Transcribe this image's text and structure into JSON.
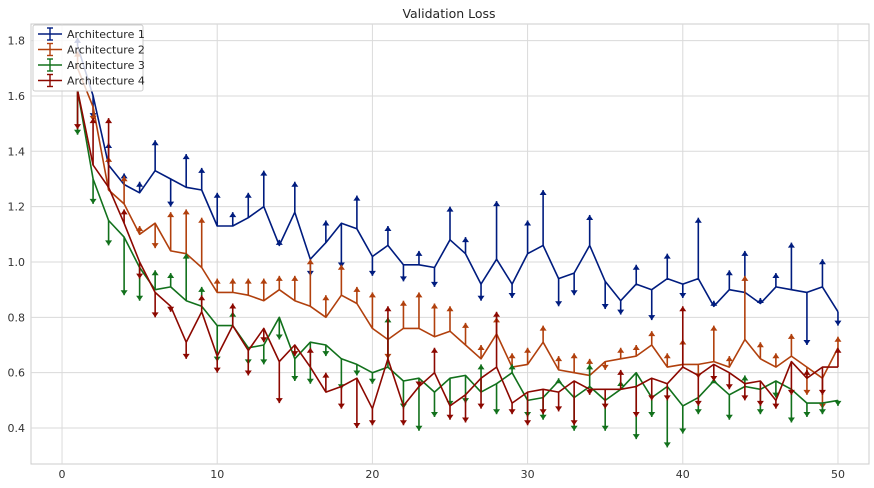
{
  "chart_data": {
    "type": "line",
    "title": "Validation Loss",
    "xlabel": "",
    "ylabel": "",
    "xlim": [
      -2,
      52
    ],
    "ylim": [
      0.27,
      1.86
    ],
    "x_ticks": [
      0,
      10,
      20,
      30,
      40,
      50
    ],
    "y_ticks": [
      0.4,
      0.6,
      0.8,
      1.0,
      1.2,
      1.4,
      1.6,
      1.8
    ],
    "grid": true,
    "legend_position": "top-left",
    "error_bars": "one-sided (one cap per point, direction varies)",
    "x": [
      1,
      2,
      3,
      4,
      5,
      6,
      7,
      8,
      9,
      10,
      11,
      12,
      13,
      14,
      15,
      16,
      17,
      18,
      19,
      20,
      21,
      22,
      23,
      24,
      25,
      26,
      27,
      28,
      29,
      30,
      31,
      32,
      33,
      34,
      35,
      36,
      37,
      38,
      39,
      40,
      41,
      42,
      43,
      44,
      45,
      46,
      47,
      48,
      49,
      50
    ],
    "series": [
      {
        "name": "Architecture 1",
        "color": "#001c7f",
        "values": [
          1.78,
          1.6,
          1.35,
          1.28,
          1.25,
          1.33,
          1.3,
          1.27,
          1.26,
          1.13,
          1.13,
          1.16,
          1.2,
          1.06,
          1.18,
          1.01,
          1.07,
          1.14,
          1.12,
          1.02,
          1.06,
          0.99,
          0.99,
          0.98,
          1.08,
          1.03,
          0.92,
          1.01,
          0.92,
          1.03,
          1.06,
          0.94,
          0.96,
          1.06,
          0.93,
          0.86,
          0.92,
          0.9,
          0.94,
          0.92,
          0.94,
          0.84,
          0.9,
          0.89,
          0.85,
          0.91,
          0.9,
          0.89,
          0.91,
          0.82
        ],
        "error_ends": [
          1.81,
          1.52,
          1.43,
          1.32,
          1.29,
          1.44,
          1.2,
          1.39,
          1.34,
          1.25,
          1.18,
          1.25,
          1.33,
          1.08,
          1.29,
          0.95,
          1.15,
          0.98,
          1.24,
          0.95,
          1.13,
          0.93,
          1.04,
          0.91,
          1.2,
          1.09,
          0.86,
          1.22,
          0.87,
          1.15,
          1.26,
          0.84,
          0.88,
          1.17,
          0.83,
          0.81,
          0.99,
          0.79,
          1.03,
          0.87,
          1.16,
          0.86,
          0.97,
          1.04,
          0.87,
          0.96,
          1.07,
          0.7,
          1.01,
          0.77
        ]
      },
      {
        "name": "Architecture 2",
        "color": "#b1400d",
        "values": [
          1.7,
          1.56,
          1.26,
          1.21,
          1.1,
          1.14,
          1.04,
          1.03,
          0.98,
          0.89,
          0.89,
          0.88,
          0.86,
          0.9,
          0.86,
          0.84,
          0.8,
          0.88,
          0.85,
          0.76,
          0.72,
          0.76,
          0.76,
          0.73,
          0.75,
          0.7,
          0.65,
          0.74,
          0.62,
          0.63,
          0.71,
          0.61,
          0.6,
          0.59,
          0.64,
          0.65,
          0.66,
          0.7,
          0.62,
          0.63,
          0.63,
          0.64,
          0.62,
          0.72,
          0.65,
          0.62,
          0.66,
          0.62,
          0.58,
          0.69
        ],
        "error_ends": [
          1.76,
          1.51,
          1.38,
          1.31,
          1.13,
          1.05,
          1.18,
          1.19,
          1.16,
          0.94,
          0.94,
          0.94,
          0.94,
          0.95,
          0.95,
          1.01,
          0.88,
          0.99,
          0.91,
          0.89,
          0.65,
          0.86,
          0.89,
          0.85,
          0.84,
          0.78,
          0.7,
          0.8,
          0.67,
          0.69,
          0.77,
          0.66,
          0.67,
          0.65,
          0.61,
          0.69,
          0.7,
          0.75,
          0.67,
          0.72,
          0.58,
          0.77,
          0.66,
          0.95,
          0.71,
          0.67,
          0.74,
          0.52,
          0.47,
          0.73
        ]
      },
      {
        "name": "Architecture 3",
        "color": "#12711c",
        "values": [
          1.62,
          1.3,
          1.15,
          1.09,
          0.98,
          0.9,
          0.91,
          0.86,
          0.84,
          0.77,
          0.77,
          0.69,
          0.7,
          0.8,
          0.65,
          0.71,
          0.7,
          0.65,
          0.63,
          0.6,
          0.62,
          0.57,
          0.58,
          0.53,
          0.58,
          0.59,
          0.53,
          0.56,
          0.6,
          0.5,
          0.51,
          0.57,
          0.51,
          0.55,
          0.5,
          0.54,
          0.6,
          0.51,
          0.55,
          0.48,
          0.51,
          0.57,
          0.52,
          0.55,
          0.54,
          0.57,
          0.54,
          0.49,
          0.49,
          0.5
        ],
        "error_ends": [
          1.46,
          1.21,
          1.06,
          0.88,
          0.86,
          0.97,
          0.96,
          1.03,
          0.91,
          0.64,
          0.82,
          0.63,
          0.63,
          0.72,
          0.57,
          0.56,
          0.66,
          0.54,
          0.59,
          0.56,
          0.8,
          0.47,
          0.39,
          0.44,
          0.48,
          0.49,
          0.63,
          0.45,
          0.63,
          0.44,
          0.43,
          0.58,
          0.39,
          0.63,
          0.39,
          0.57,
          0.36,
          0.44,
          0.33,
          0.38,
          0.45,
          0.58,
          0.43,
          0.59,
          0.45,
          0.51,
          0.42,
          0.44,
          0.45,
          0.48
        ]
      },
      {
        "name": "Architecture 4",
        "color": "#8c0800",
        "values": [
          1.62,
          1.35,
          1.27,
          1.14,
          1.0,
          0.89,
          0.84,
          0.71,
          0.82,
          0.66,
          0.77,
          0.68,
          0.76,
          0.64,
          0.7,
          0.62,
          0.53,
          0.55,
          0.58,
          0.47,
          0.65,
          0.48,
          0.55,
          0.6,
          0.48,
          0.52,
          0.58,
          0.62,
          0.49,
          0.53,
          0.54,
          0.53,
          0.57,
          0.54,
          0.54,
          0.54,
          0.55,
          0.58,
          0.56,
          0.62,
          0.59,
          0.63,
          0.6,
          0.56,
          0.57,
          0.5,
          0.64,
          0.58,
          0.62,
          0.62
        ],
        "error_ends": [
          1.48,
          1.52,
          1.52,
          1.19,
          0.94,
          0.8,
          0.82,
          0.65,
          0.88,
          0.6,
          0.85,
          0.59,
          0.71,
          0.49,
          0.66,
          0.69,
          0.6,
          0.47,
          0.4,
          0.41,
          0.84,
          0.41,
          0.55,
          0.69,
          0.43,
          0.42,
          0.47,
          0.82,
          0.45,
          0.41,
          0.45,
          0.46,
          0.41,
          0.52,
          0.47,
          0.61,
          0.44,
          0.5,
          0.5,
          0.84,
          0.48,
          0.57,
          0.54,
          0.5,
          0.48,
          0.47,
          0.52,
          0.61,
          0.52,
          0.69
        ]
      }
    ]
  }
}
